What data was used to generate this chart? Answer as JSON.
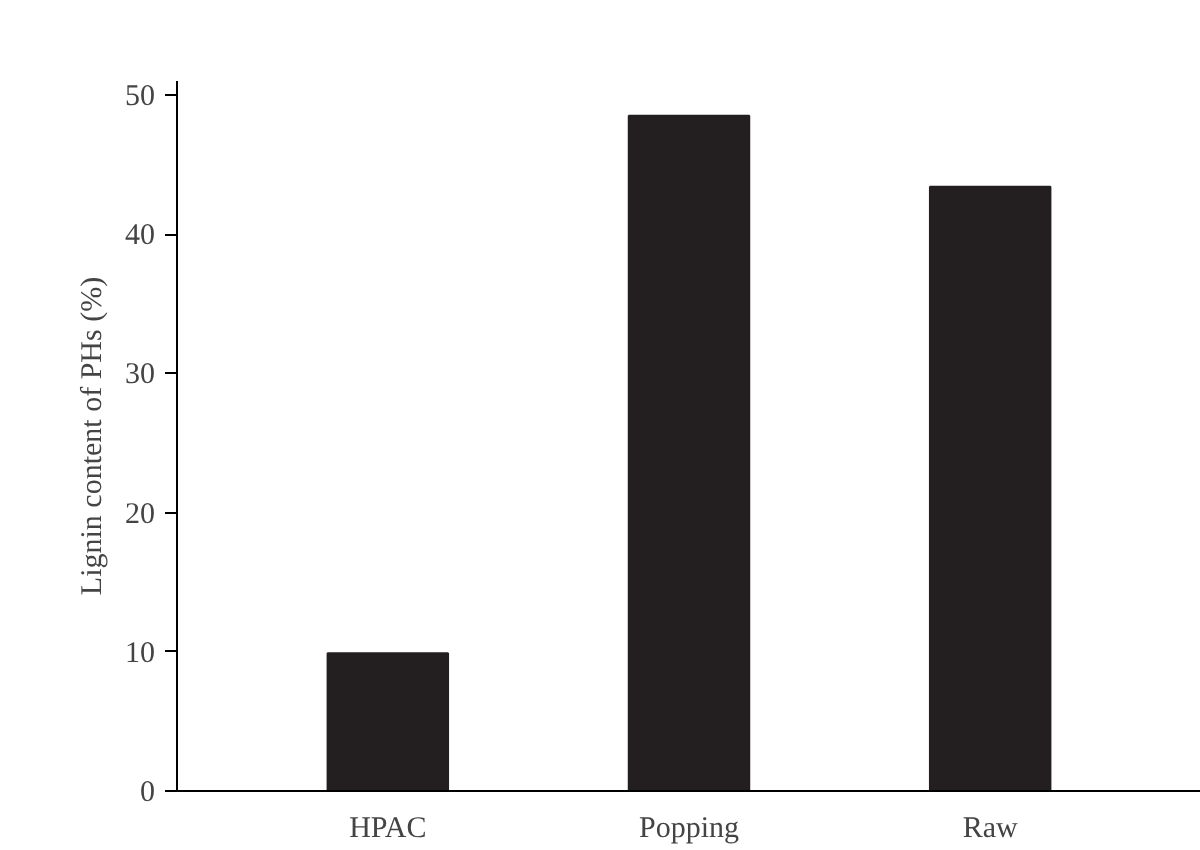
{
  "chart_data": {
    "type": "bar",
    "ylabel": "Lignin content of PHs (%)",
    "categories": [
      "HPAC",
      "Popping",
      "Raw"
    ],
    "values": [
      9.9,
      48.5,
      43.4
    ],
    "color": "#231f20",
    "ylim": [
      0,
      51
    ],
    "yticks": [
      0,
      10,
      20,
      30,
      40,
      50
    ],
    "grid": false
  }
}
